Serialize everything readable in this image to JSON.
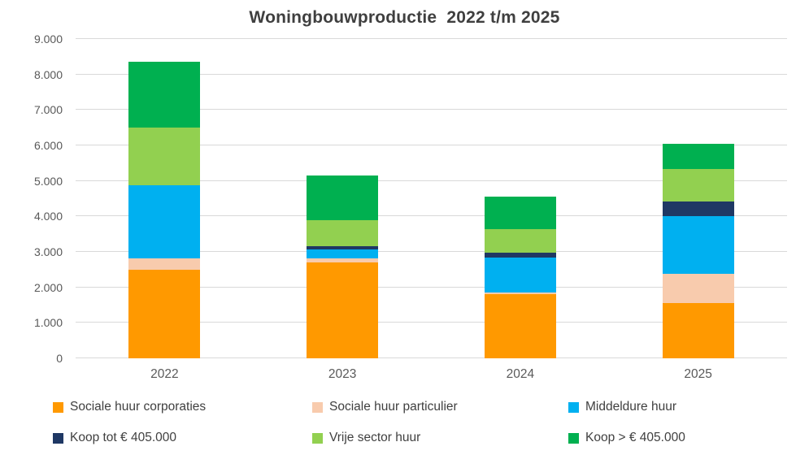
{
  "chart_data": {
    "type": "bar",
    "stacked": true,
    "title": "Woningbouwproductie  2022 t/m 2025",
    "xlabel": "",
    "ylabel": "",
    "categories": [
      "2022",
      "2023",
      "2024",
      "2025"
    ],
    "series": [
      {
        "name": "Sociale huur corporaties",
        "color": "#FF9900",
        "values": [
          2500,
          2700,
          1800,
          1560
        ]
      },
      {
        "name": "Sociale huur particulier",
        "color": "#F8CBAD",
        "values": [
          320,
          120,
          50,
          820
        ]
      },
      {
        "name": "Middeldure huur",
        "color": "#00B0F0",
        "values": [
          2060,
          250,
          1000,
          1630
        ]
      },
      {
        "name": "Koop tot € 405.000",
        "color": "#1F3864",
        "values": [
          0,
          80,
          120,
          400
        ]
      },
      {
        "name": "Vrije sector huur",
        "color": "#92D050",
        "values": [
          1630,
          750,
          670,
          920
        ]
      },
      {
        "name": "Koop > € 405.000",
        "color": "#00B050",
        "values": [
          1860,
          1250,
          910,
          710
        ]
      }
    ],
    "totals": [
      8370,
      5150,
      4550,
      6040
    ],
    "ylim": [
      0,
      9000
    ],
    "ytick_interval": 1000,
    "yticks": [
      {
        "value": 0,
        "label": "0"
      },
      {
        "value": 1000,
        "label": "1.000"
      },
      {
        "value": 2000,
        "label": "2.000"
      },
      {
        "value": 3000,
        "label": "3.000"
      },
      {
        "value": 4000,
        "label": "4.000"
      },
      {
        "value": 5000,
        "label": "5.000"
      },
      {
        "value": 6000,
        "label": "6.000"
      },
      {
        "value": 7000,
        "label": "7.000"
      },
      {
        "value": 8000,
        "label": "8.000"
      },
      {
        "value": 9000,
        "label": "9.000"
      }
    ],
    "grid": true,
    "gridline_color": "#d9d9d9",
    "title_color": "#3f3f3f",
    "axis_text_color": "#595959",
    "legend_text_color": "#404040",
    "legend_position": "bottom",
    "legend_columns": 3
  }
}
